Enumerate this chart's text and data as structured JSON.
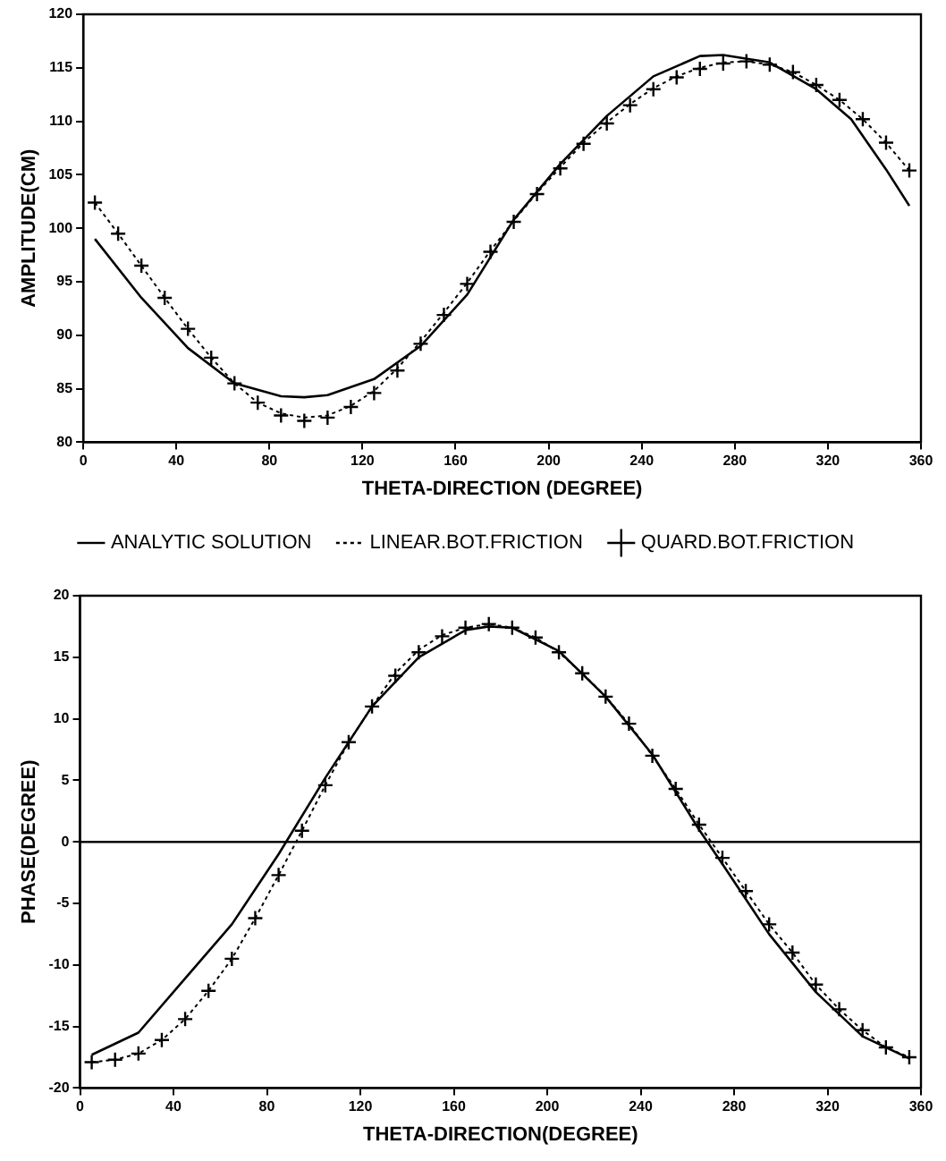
{
  "chart_data": [
    {
      "type": "line",
      "xlabel": "THETA-DIRECTION (DEGREE)",
      "ylabel": "AMPLITUDE(CM)",
      "xlim": [
        0,
        360
      ],
      "xticks": [
        0,
        40,
        80,
        120,
        160,
        200,
        240,
        280,
        320,
        360
      ],
      "ylim": [
        80,
        120
      ],
      "yticks": [
        80,
        85,
        90,
        95,
        100,
        105,
        110,
        115,
        120
      ],
      "grid": false,
      "legend": "bottom",
      "series": [
        {
          "name": "ANALYTIC SOLUTION",
          "type": "line",
          "line_style": "solid",
          "marker": "none",
          "color": "#000000",
          "x": [
            5,
            25,
            45,
            65,
            85,
            95,
            105,
            125,
            145,
            165,
            185,
            205,
            225,
            245,
            265,
            275,
            295,
            315,
            330,
            345,
            355
          ],
          "values": [
            99.0,
            93.5,
            88.8,
            85.5,
            84.3,
            84.2,
            84.4,
            85.9,
            89.0,
            93.8,
            100.8,
            106.0,
            110.5,
            114.2,
            116.1,
            116.2,
            115.5,
            113.0,
            110.2,
            105.5,
            102.1
          ]
        },
        {
          "name": "LINEAR.BOT.FRICTION",
          "type": "line",
          "line_style": "dotted",
          "marker": "none",
          "color": "#000000",
          "x": [
            5,
            15,
            25,
            35,
            45,
            55,
            65,
            75,
            85,
            95,
            105,
            115,
            125,
            135,
            145,
            155,
            165,
            175,
            185,
            195,
            205,
            215,
            225,
            235,
            245,
            255,
            265,
            275,
            285,
            295,
            305,
            315,
            325,
            335,
            345,
            355
          ],
          "values": [
            102.4,
            99.5,
            96.5,
            93.5,
            90.6,
            87.9,
            85.5,
            83.7,
            82.7,
            82.3,
            82.5,
            83.4,
            84.8,
            86.9,
            89.4,
            92.1,
            94.9,
            97.9,
            100.7,
            103.3,
            105.7,
            108.0,
            109.9,
            111.6,
            113.1,
            114.2,
            115.0,
            115.5,
            115.6,
            115.3,
            114.6,
            113.4,
            112.0,
            110.2,
            108.0,
            105.4
          ]
        },
        {
          "name": "QUARD.BOT.FRICTION",
          "type": "scatter",
          "marker": "cross",
          "color": "#000000",
          "x": [
            5,
            15,
            25,
            35,
            45,
            55,
            65,
            75,
            85,
            95,
            105,
            115,
            125,
            135,
            145,
            155,
            165,
            175,
            185,
            195,
            205,
            215,
            225,
            235,
            245,
            255,
            265,
            275,
            285,
            295,
            305,
            315,
            325,
            335,
            345,
            355
          ],
          "values": [
            102.4,
            99.5,
            96.5,
            93.5,
            90.6,
            87.9,
            85.5,
            83.7,
            82.5,
            82.0,
            82.3,
            83.3,
            84.6,
            86.7,
            89.2,
            91.9,
            94.8,
            97.8,
            100.6,
            103.2,
            105.6,
            107.9,
            109.8,
            111.5,
            113.0,
            114.1,
            114.9,
            115.4,
            115.6,
            115.3,
            114.6,
            113.4,
            112.0,
            110.2,
            108.0,
            105.4
          ]
        }
      ]
    },
    {
      "type": "line",
      "xlabel": "THETA-DIRECTION(DEGREE)",
      "ylabel": "PHASE(DEGREE)",
      "xlim": [
        0,
        360
      ],
      "xticks": [
        0,
        40,
        80,
        120,
        160,
        200,
        240,
        280,
        320,
        360
      ],
      "ylim": [
        -20,
        20
      ],
      "yticks": [
        -20,
        -15,
        -10,
        -5,
        0,
        5,
        10,
        15,
        20
      ],
      "grid": false,
      "ref_lines": [
        {
          "axis": "y",
          "value": 0,
          "color": "#000000"
        }
      ],
      "series": [
        {
          "type": "line",
          "line_style": "solid",
          "marker": "none",
          "color": "#000000",
          "x": [
            5,
            25,
            45,
            65,
            85,
            105,
            125,
            145,
            165,
            175,
            185,
            205,
            225,
            245,
            265,
            275,
            295,
            315,
            335,
            355
          ],
          "values": [
            -17.3,
            -15.5,
            -11.1,
            -6.7,
            -1.0,
            5.2,
            11.0,
            15.0,
            17.2,
            17.5,
            17.4,
            15.5,
            11.8,
            7.1,
            1.0,
            -1.8,
            -7.5,
            -12.2,
            -15.8,
            -17.6
          ]
        },
        {
          "type": "line",
          "line_style": "dotted",
          "marker": "none",
          "color": "#000000",
          "x": [
            5,
            15,
            25,
            35,
            45,
            55,
            65,
            75,
            85,
            95,
            105,
            115,
            125,
            135,
            145,
            155,
            165,
            175,
            185,
            195,
            205,
            215,
            225,
            235,
            245,
            255,
            265,
            275,
            285,
            295,
            305,
            315,
            325,
            335,
            345,
            355
          ],
          "values": [
            -17.9,
            -17.7,
            -17.2,
            -16.1,
            -14.4,
            -12.1,
            -9.5,
            -6.2,
            -2.7,
            0.9,
            4.6,
            8.1,
            11.0,
            13.7,
            15.6,
            16.8,
            17.4,
            17.7,
            17.4,
            16.6,
            15.4,
            13.7,
            11.8,
            9.6,
            7.0,
            4.3,
            1.4,
            -1.3,
            -4.0,
            -6.7,
            -9.0,
            -11.6,
            -13.6,
            -15.3,
            -16.7,
            -17.5
          ]
        },
        {
          "type": "scatter",
          "marker": "cross",
          "color": "#000000",
          "x": [
            5,
            15,
            25,
            35,
            45,
            55,
            65,
            75,
            85,
            95,
            105,
            115,
            125,
            135,
            145,
            155,
            165,
            175,
            185,
            195,
            205,
            215,
            225,
            235,
            245,
            255,
            265,
            275,
            285,
            295,
            305,
            315,
            325,
            335,
            345,
            355
          ],
          "values": [
            -17.9,
            -17.7,
            -17.2,
            -16.1,
            -14.4,
            -12.1,
            -9.5,
            -6.2,
            -2.7,
            0.9,
            4.6,
            8.1,
            11.0,
            13.5,
            15.4,
            16.7,
            17.4,
            17.7,
            17.4,
            16.6,
            15.4,
            13.7,
            11.8,
            9.6,
            7.0,
            4.3,
            1.4,
            -1.3,
            -4.0,
            -6.7,
            -9.0,
            -11.6,
            -13.6,
            -15.3,
            -16.7,
            -17.5
          ]
        }
      ]
    }
  ]
}
